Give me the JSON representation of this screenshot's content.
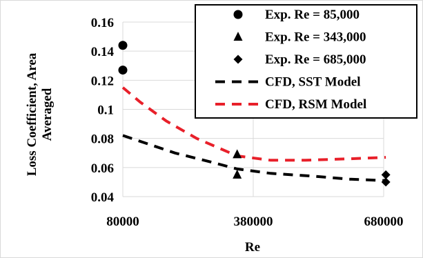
{
  "chart_data": {
    "type": "scatter",
    "title": "",
    "xlabel": "Re",
    "ylabel": "Loss Coefficient, Area Averaged",
    "ylabel_lines": [
      "Loss Coefficient, Area",
      "Averaged"
    ],
    "xlim": [
      80000,
      680000
    ],
    "ylim": [
      0.04,
      0.16
    ],
    "xticks": [
      80000,
      380000,
      680000
    ],
    "xtick_labels": [
      "80000",
      "380000",
      "680000"
    ],
    "yticks": [
      0.04,
      0.06,
      0.08,
      0.1,
      0.12,
      0.14,
      0.16
    ],
    "ytick_labels": [
      "0.04",
      "0.06",
      "0.08",
      "0.1",
      "0.12",
      "0.14",
      "0.16"
    ],
    "grid": "both",
    "legend_position": "top-right",
    "series": [
      {
        "name": "Exp. Re = 85,000",
        "kind": "scatter",
        "marker": "circle",
        "color": "#000000",
        "points": [
          [
            80000,
            0.144
          ],
          [
            80000,
            0.127
          ]
        ]
      },
      {
        "name": "Exp. Re = 343,000",
        "kind": "scatter",
        "marker": "triangle",
        "color": "#000000",
        "points": [
          [
            343000,
            0.069
          ],
          [
            343000,
            0.055
          ]
        ]
      },
      {
        "name": "Exp. Re = 685,000",
        "kind": "scatter",
        "marker": "diamond",
        "color": "#000000",
        "points": [
          [
            685000,
            0.055
          ],
          [
            685000,
            0.05
          ]
        ]
      },
      {
        "name": "CFD, SST Model",
        "kind": "line",
        "dash": true,
        "color": "#000000",
        "points": [
          [
            80000,
            0.082
          ],
          [
            130000,
            0.077
          ],
          [
            200000,
            0.07
          ],
          [
            280000,
            0.064
          ],
          [
            343000,
            0.059
          ],
          [
            420000,
            0.056
          ],
          [
            520000,
            0.054
          ],
          [
            600000,
            0.052
          ],
          [
            685000,
            0.051
          ]
        ]
      },
      {
        "name": "CFD, RSM Model",
        "kind": "line",
        "dash": true,
        "color": "#e8202a",
        "points": [
          [
            80000,
            0.115
          ],
          [
            120000,
            0.105
          ],
          [
            180000,
            0.092
          ],
          [
            250000,
            0.08
          ],
          [
            343000,
            0.068
          ],
          [
            420000,
            0.065
          ],
          [
            500000,
            0.065
          ],
          [
            600000,
            0.066
          ],
          [
            685000,
            0.067
          ]
        ]
      }
    ]
  }
}
